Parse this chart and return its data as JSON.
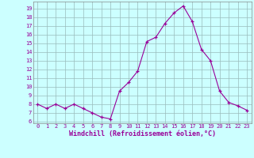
{
  "x": [
    0,
    1,
    2,
    3,
    4,
    5,
    6,
    7,
    8,
    9,
    10,
    11,
    12,
    13,
    14,
    15,
    16,
    17,
    18,
    19,
    20,
    21,
    22,
    23
  ],
  "y": [
    8.0,
    7.5,
    8.0,
    7.5,
    8.0,
    7.5,
    7.0,
    6.5,
    6.3,
    9.5,
    10.5,
    11.8,
    15.2,
    15.7,
    17.3,
    18.5,
    19.3,
    17.5,
    14.3,
    13.0,
    9.5,
    8.2,
    7.8,
    7.3
  ],
  "line_color": "#990099",
  "marker": "+",
  "bg_color": "#ccffff",
  "grid_color": "#99bbbb",
  "xlabel": "Windchill (Refroidissement éolien,°C)",
  "tick_color": "#990099",
  "ylabel_ticks": [
    6,
    7,
    8,
    9,
    10,
    11,
    12,
    13,
    14,
    15,
    16,
    17,
    18,
    19
  ],
  "xlim": [
    -0.5,
    23.5
  ],
  "ylim": [
    5.8,
    19.8
  ],
  "xticks": [
    0,
    1,
    2,
    3,
    4,
    5,
    6,
    7,
    8,
    9,
    10,
    11,
    12,
    13,
    14,
    15,
    16,
    17,
    18,
    19,
    20,
    21,
    22,
    23
  ]
}
